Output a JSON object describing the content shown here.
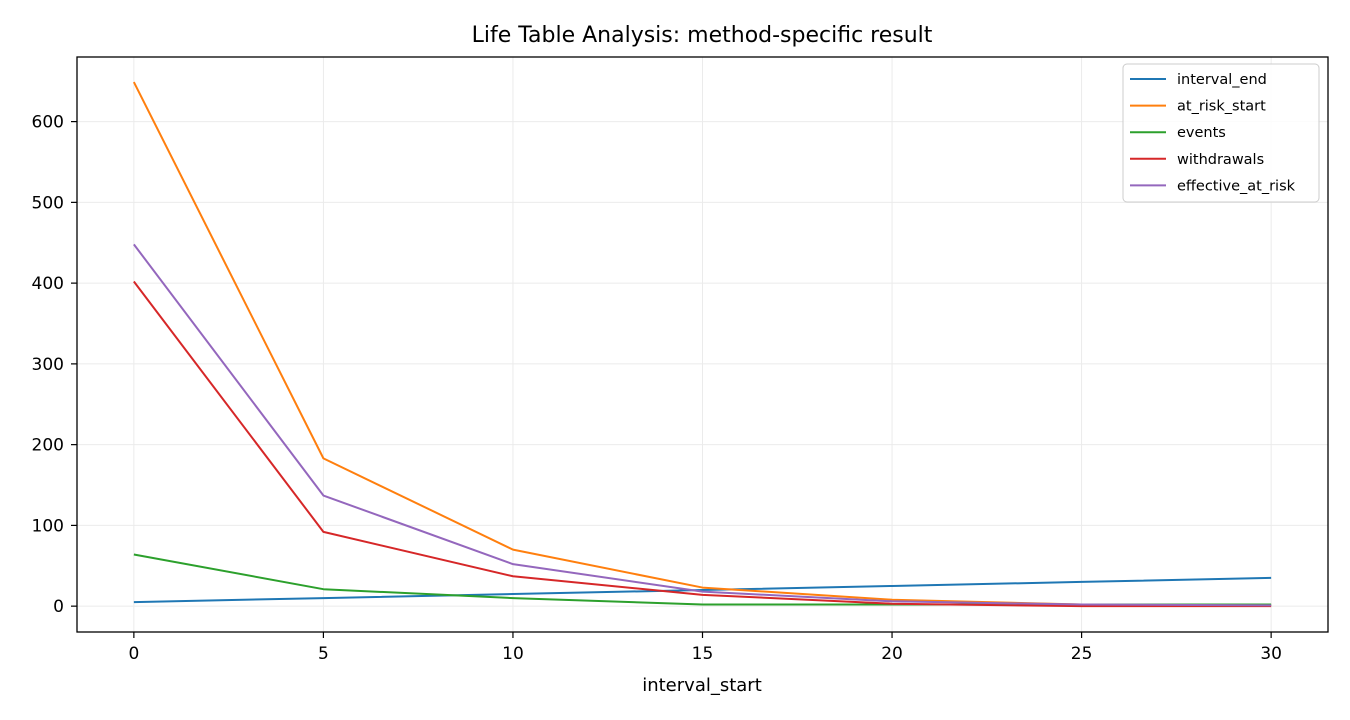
{
  "chart_data": {
    "type": "line",
    "title": "Life Table Analysis: method-specific result",
    "xlabel": "interval_start",
    "ylabel": "",
    "x": [
      0,
      5,
      10,
      15,
      20,
      25,
      30
    ],
    "xlim": [
      -1.5,
      31.5
    ],
    "ylim": [
      -32,
      680
    ],
    "xticks": [
      0,
      5,
      10,
      15,
      20,
      25,
      30
    ],
    "yticks": [
      0,
      100,
      200,
      300,
      400,
      500,
      600
    ],
    "grid": true,
    "legend_position": "top-right",
    "series": [
      {
        "name": "interval_end",
        "color": "#1f77b4",
        "values": [
          5,
          10,
          15,
          20,
          25,
          30,
          35
        ]
      },
      {
        "name": "at_risk_start",
        "color": "#ff7f0e",
        "values": [
          649,
          183,
          70,
          23,
          8,
          2,
          1
        ]
      },
      {
        "name": "events",
        "color": "#2ca02c",
        "values": [
          64,
          21,
          10,
          2,
          2,
          2,
          2
        ]
      },
      {
        "name": "withdrawals",
        "color": "#d62728",
        "values": [
          402,
          92,
          37,
          14,
          3,
          0,
          0
        ]
      },
      {
        "name": "effective_at_risk",
        "color": "#9467bd",
        "values": [
          448,
          137,
          52,
          18,
          6,
          2,
          1
        ]
      }
    ]
  }
}
